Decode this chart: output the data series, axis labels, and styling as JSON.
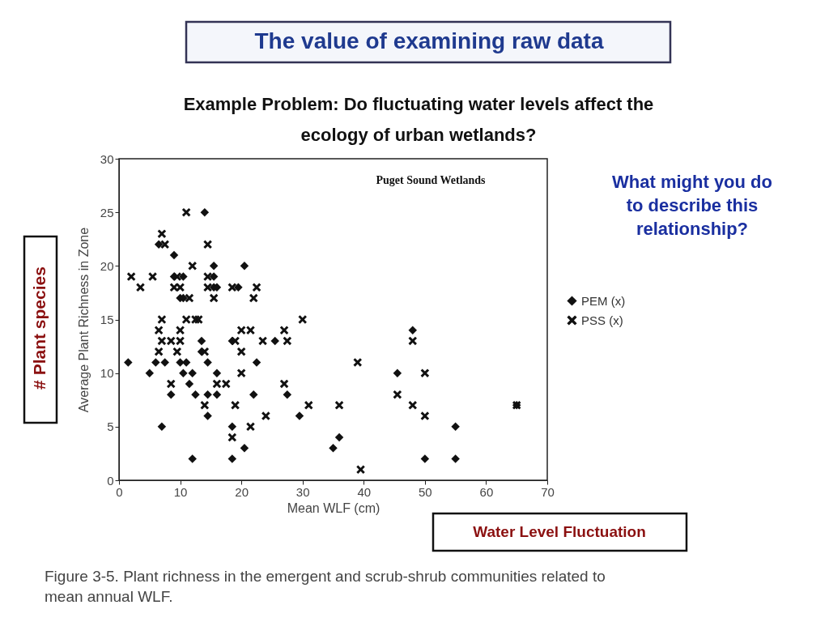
{
  "chart_data": {
    "type": "scatter",
    "title": "The value of examining raw data",
    "subtitle": "Example Problem: Do fluctuating water levels affect the ecology of urban wetlands?",
    "xlabel": "Mean WLF (cm)",
    "ylabel": "Average Plant Richness in Zone",
    "annotations": [
      "Puget Sound Wetlands",
      "What might you do to describe this relationship?",
      "# Plant species",
      "Water Level Fluctuation",
      "Figure 3-5. Plant richness in the emergent and scrub-shrub communities related to mean annual WLF."
    ],
    "xlim": [
      0,
      70
    ],
    "xticks": [
      0,
      10,
      20,
      30,
      40,
      50,
      60,
      70
    ],
    "ylim": [
      0,
      30
    ],
    "yticks": [
      0,
      5,
      10,
      15,
      20,
      25,
      30
    ],
    "grid": false,
    "legend": "right",
    "series": [
      {
        "name": "PEM (x)",
        "color": "#111111",
        "marker": "diamond",
        "x": [
          14,
          6.5,
          9,
          15.5,
          20.5,
          9,
          10.5,
          15.5,
          15.5,
          16,
          19.5,
          10,
          10.5,
          13.5,
          18.5,
          25.5,
          13.5,
          1.5,
          6,
          7.5,
          10,
          11,
          14.5,
          22.5,
          5,
          10.5,
          12,
          16,
          11.5,
          8.5,
          12.5,
          14.5,
          16,
          22,
          27.5,
          14.5,
          29.5,
          7,
          18.5,
          55,
          36,
          20.5,
          35,
          12,
          18.5,
          50,
          55,
          48,
          45.5,
          65
        ],
        "values": [
          25,
          22,
          21,
          20,
          20,
          19,
          19,
          19,
          18,
          18,
          18,
          17,
          17,
          13,
          13,
          13,
          12,
          11,
          11,
          11,
          11,
          11,
          11,
          11,
          10,
          10,
          10,
          10,
          9,
          8,
          8,
          8,
          8,
          8,
          8,
          6,
          6,
          5,
          5,
          5,
          4,
          3,
          3,
          2,
          2,
          2,
          2,
          14,
          10,
          7
        ]
      },
      {
        "name": "PSS (x)",
        "color": "#111111",
        "marker": "cross",
        "x": [
          11,
          7,
          7.5,
          14.5,
          12,
          2,
          5.5,
          9.5,
          14.5,
          3.5,
          9,
          10,
          14.5,
          18.5,
          22.5,
          11.5,
          15.5,
          22,
          7,
          11,
          12.5,
          13,
          30,
          6.5,
          10,
          20,
          21.5,
          27,
          7,
          8.5,
          10,
          19,
          23.5,
          27.5,
          48,
          6.5,
          9.5,
          14,
          20,
          39,
          20,
          50,
          8.5,
          16,
          17.5,
          27,
          45.5,
          14,
          19,
          31,
          36,
          48,
          65,
          24,
          50,
          21.5,
          18.5,
          39.5
        ],
        "values": [
          25,
          23,
          22,
          22,
          20,
          19,
          19,
          19,
          19,
          18,
          18,
          18,
          18,
          18,
          18,
          17,
          17,
          17,
          15,
          15,
          15,
          15,
          15,
          14,
          14,
          14,
          14,
          14,
          13,
          13,
          13,
          13,
          13,
          13,
          13,
          12,
          12,
          12,
          12,
          11,
          10,
          10,
          9,
          9,
          9,
          9,
          8,
          7,
          7,
          7,
          7,
          7,
          7,
          6,
          6,
          5,
          4,
          1
        ]
      }
    ]
  }
}
